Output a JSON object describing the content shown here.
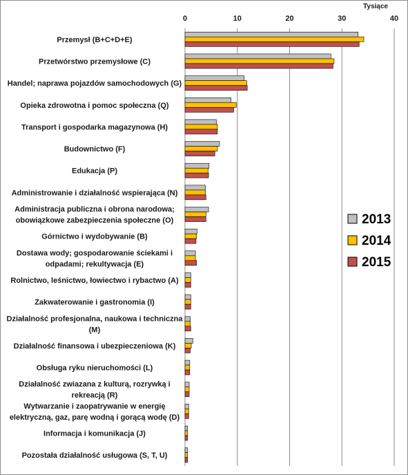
{
  "chart_data": {
    "type": "bar",
    "orientation": "horizontal",
    "unit_label": "Tysiące",
    "xlim": [
      0,
      40
    ],
    "ticks": [
      0,
      10,
      20,
      30,
      40
    ],
    "grid": true,
    "legend_position": "right",
    "categories": [
      [
        "Przemysł (B+C+D+E)"
      ],
      [
        "Przetwórstwo przemysłowe (C)"
      ],
      [
        "Handel; naprawa pojazdów samochodowych (G)"
      ],
      [
        "Opieka zdrowotna i pomoc społeczna (Q)"
      ],
      [
        "Transport i gospodarka magazynowa (H)"
      ],
      [
        "Budownictwo (F)"
      ],
      [
        "Edukacja (P)"
      ],
      [
        "Administrowanie i działalność wspierająca (N)"
      ],
      [
        "Administracja publiczna i obrona narodowa;",
        "obowiązkowe zabezpieczenia społeczne (O)"
      ],
      [
        "Górnictwo i wydobywanie (B)"
      ],
      [
        "Dostawa wody; gospodarowanie ściekami i",
        "odpadami; rekultywacja (E)"
      ],
      [
        "Rolnictwo, leśnictwo, łowiectwo i rybactwo (A)"
      ],
      [
        "Zakwaterowanie i gastronomia (I)"
      ],
      [
        "Działalność profesjonalna, naukowa i techniczna",
        "(M)"
      ],
      [
        "Działalność finansowa i ubezpieczeniowa (K)"
      ],
      [
        "Obsługa ryku nieruchomości (L)"
      ],
      [
        "Działalność zwiazana z kulturą, rozrywką i",
        "rekreacją (R)"
      ],
      [
        "Wytwarzanie i zaopatrywanie w energię",
        "elektryczną, gaz, parę wodną i gorącą wodę (D)"
      ],
      [
        "Informacja i komunikacja (J)"
      ],
      [
        "Pozostała działalność usługowa (S, T, U)"
      ]
    ],
    "series": [
      {
        "name": "2013",
        "color": "#c0c0c0",
        "values": [
          33.1,
          27.9,
          11.3,
          8.8,
          6.0,
          6.6,
          4.6,
          3.9,
          4.5,
          2.3,
          2.0,
          1.1,
          1.1,
          1.0,
          1.5,
          0.9,
          0.8,
          0.7,
          0.5,
          0.5
        ]
      },
      {
        "name": "2014",
        "color": "#ffc000",
        "values": [
          34.2,
          28.5,
          11.8,
          9.8,
          6.2,
          6.2,
          4.4,
          3.9,
          4.0,
          2.2,
          2.0,
          1.1,
          1.1,
          1.0,
          1.2,
          0.9,
          0.8,
          0.7,
          0.5,
          0.5
        ]
      },
      {
        "name": "2015",
        "color": "#c0504d",
        "values": [
          33.3,
          28.3,
          11.9,
          9.3,
          6.2,
          5.7,
          4.5,
          4.0,
          4.0,
          2.1,
          2.2,
          1.1,
          1.1,
          1.1,
          1.0,
          0.9,
          0.8,
          0.7,
          0.5,
          0.5
        ]
      }
    ]
  }
}
